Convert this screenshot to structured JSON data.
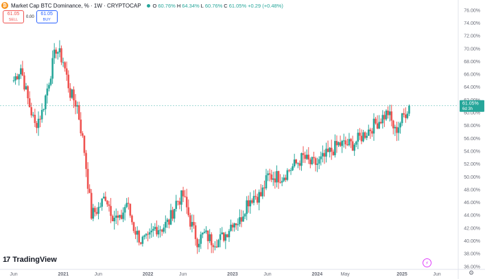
{
  "header": {
    "title": "Market Cap BTC Dominance, % · 1W · CRYPTOCAP",
    "btc_symbol": "₿",
    "ohlc": [
      {
        "k": "O",
        "v": "60.76%"
      },
      {
        "k": "H",
        "v": "64.34%"
      },
      {
        "k": "L",
        "v": "60.76%"
      },
      {
        "k": "C",
        "v": "61.05%"
      },
      {
        "k": "",
        "v": "+0.29 (+0.48%)"
      }
    ]
  },
  "trade": {
    "sell_price": "61.05",
    "sell_label": "SELL",
    "spread": "0.00",
    "buy_price": "61.05",
    "buy_label": "BUY"
  },
  "price_tag": {
    "value": "61.05%",
    "countdown": "6d 3h"
  },
  "branding": {
    "logo_mark": "17",
    "logo_text": "TradingView"
  },
  "colors": {
    "up": "#26a69a",
    "down": "#ef5350",
    "axis_text": "#6a6d78",
    "price_line": "#26a69a"
  },
  "icons": {
    "goto_realtime": "goto-realtime-icon",
    "settings": "gear-icon"
  },
  "chart_data": {
    "type": "candlestick",
    "ylim": [
      35.5,
      77
    ],
    "y_ticks": [
      "76.00%",
      "74.00%",
      "72.00%",
      "70.00%",
      "68.00%",
      "66.00%",
      "64.00%",
      "62.00%",
      "60.00%",
      "58.00%",
      "56.00%",
      "54.00%",
      "52.00%",
      "50.00%",
      "48.00%",
      "46.00%",
      "44.00%",
      "42.00%",
      "40.00%",
      "38.00%",
      "36.00%"
    ],
    "x_ticks": [
      "Jun",
      "2021",
      "Jun",
      "2022",
      "Jun",
      "2023",
      "Jun",
      "2024",
      "May",
      "2025",
      "Jun"
    ],
    "last_close": 61.05,
    "close_series": [
      [
        "2020-06",
        65
      ],
      [
        "2020-07",
        67
      ],
      [
        "2020-08",
        62
      ],
      [
        "2020-09",
        58
      ],
      [
        "2020-10",
        60
      ],
      [
        "2020-11",
        65
      ],
      [
        "2020-12",
        70
      ],
      [
        "2021-01",
        68
      ],
      [
        "2021-02",
        63
      ],
      [
        "2021-03",
        61
      ],
      [
        "2021-04",
        54
      ],
      [
        "2021-05",
        44
      ],
      [
        "2021-06",
        45
      ],
      [
        "2021-07",
        47
      ],
      [
        "2021-08",
        44
      ],
      [
        "2021-09",
        43
      ],
      [
        "2021-10",
        46
      ],
      [
        "2021-11",
        42
      ],
      [
        "2021-12",
        40
      ],
      [
        "2022-01",
        40
      ],
      [
        "2022-02",
        42
      ],
      [
        "2022-03",
        42
      ],
      [
        "2022-04",
        43
      ],
      [
        "2022-05",
        46
      ],
      [
        "2022-06",
        47
      ],
      [
        "2022-07",
        43
      ],
      [
        "2022-08",
        40
      ],
      [
        "2022-09",
        41
      ],
      [
        "2022-10",
        40
      ],
      [
        "2022-11",
        40
      ],
      [
        "2022-12",
        41
      ],
      [
        "2023-01",
        43
      ],
      [
        "2023-02",
        43
      ],
      [
        "2023-03",
        46
      ],
      [
        "2023-04",
        47
      ],
      [
        "2023-05",
        47
      ],
      [
        "2023-06",
        50
      ],
      [
        "2023-07",
        50
      ],
      [
        "2023-08",
        50
      ],
      [
        "2023-09",
        51
      ],
      [
        "2023-10",
        52
      ],
      [
        "2023-11",
        53
      ],
      [
        "2023-12",
        52
      ],
      [
        "2024-01",
        52
      ],
      [
        "2024-02",
        53
      ],
      [
        "2024-03",
        54
      ],
      [
        "2024-04",
        55
      ],
      [
        "2024-05",
        55
      ],
      [
        "2024-06",
        55
      ],
      [
        "2024-07",
        56
      ],
      [
        "2024-08",
        57
      ],
      [
        "2024-09",
        58
      ],
      [
        "2024-10",
        59
      ],
      [
        "2024-11",
        60
      ],
      [
        "2024-12",
        57
      ],
      [
        "2025-01",
        59
      ],
      [
        "2025-02",
        61.05
      ]
    ]
  }
}
